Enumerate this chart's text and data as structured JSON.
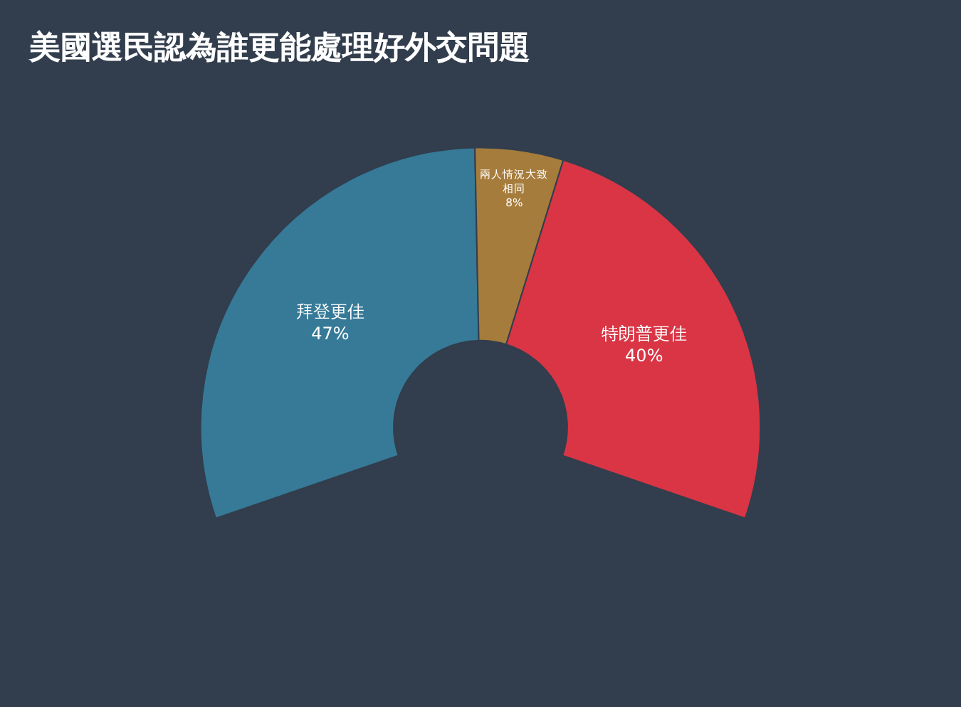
{
  "chart_data": {
    "type": "donut",
    "title": "美國選民認為誰更能處理好外交問題",
    "categories": [
      "拜登更佳",
      "兩人情況大致相同",
      "特朗普更佳"
    ],
    "values": [
      47,
      8,
      40
    ],
    "value_labels": [
      "47%",
      "8%",
      "40%"
    ],
    "colors": [
      "#367a98",
      "#a67c3c",
      "#d93545"
    ],
    "legend": false
  }
}
